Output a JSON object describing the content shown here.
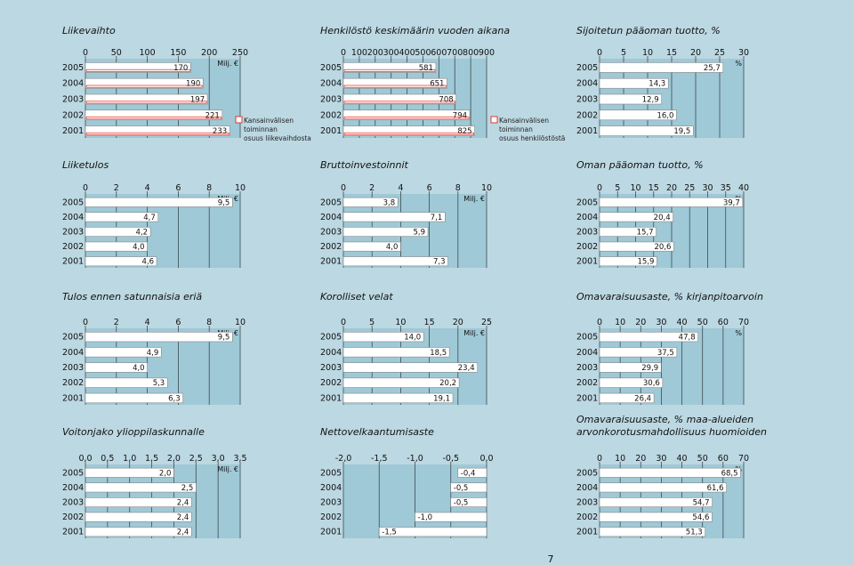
{
  "page": {
    "number": "7"
  },
  "colors": {
    "background": "#bcd8e2",
    "plot": "#9fc9d6",
    "bar": "#ffffff",
    "bar_border": "#888888",
    "grid": "#3d4b52",
    "legend_box": "#e0281e"
  },
  "chart_data": [
    {
      "type": "bar",
      "orientation": "horizontal",
      "title": "Liikevaihto",
      "categories": [
        "2005",
        "2004",
        "2003",
        "2002",
        "2001"
      ],
      "values": [
        170,
        190,
        197,
        221,
        233
      ],
      "value_labels": [
        "170",
        "190",
        "197",
        "221",
        "233"
      ],
      "ticks": [
        0,
        50,
        100,
        150,
        200,
        250
      ],
      "tick_labels": [
        "0",
        "50",
        "100",
        "150",
        "200",
        "250"
      ],
      "xlim": [
        0,
        250
      ],
      "unit": "Milj. €",
      "highlight": true,
      "legend": [
        "Kansainvälisen",
        "toiminnan",
        "osuus liikevaihdosta"
      ]
    },
    {
      "type": "bar",
      "orientation": "horizontal",
      "title": "Henkilöstö keskimäärin vuoden aikana",
      "categories": [
        "2005",
        "2004",
        "2003",
        "2002",
        "2001"
      ],
      "values": [
        581,
        651,
        708,
        794,
        825
      ],
      "value_labels": [
        "581",
        "651",
        "708",
        "794",
        "825"
      ],
      "ticks": [
        0,
        100,
        200,
        300,
        400,
        500,
        600,
        700,
        800,
        900
      ],
      "tick_labels": [
        "0",
        "100",
        "200",
        "300",
        "400",
        "500",
        "600",
        "700",
        "800",
        "900"
      ],
      "xlim": [
        0,
        900
      ],
      "highlight": true,
      "legend": [
        "Kansainvälisen",
        "toiminnan",
        "osuus henkilöstöstä"
      ]
    },
    {
      "type": "bar",
      "orientation": "horizontal",
      "title": "Sijoitetun pääoman tuotto, %",
      "categories": [
        "2005",
        "2004",
        "2003",
        "2002",
        "2001"
      ],
      "values": [
        25.7,
        14.3,
        12.9,
        16.0,
        19.5
      ],
      "value_labels": [
        "25,7",
        "14,3",
        "12,9",
        "16,0",
        "19,5"
      ],
      "ticks": [
        0,
        5,
        10,
        15,
        20,
        25,
        30
      ],
      "tick_labels": [
        "0",
        "5",
        "10",
        "15",
        "20",
        "25",
        "30"
      ],
      "xlim": [
        0,
        30
      ],
      "unit": "%"
    },
    {
      "type": "bar",
      "orientation": "horizontal",
      "title": "Liiketulos",
      "categories": [
        "2005",
        "2004",
        "2003",
        "2002",
        "2001"
      ],
      "values": [
        9.5,
        4.7,
        4.2,
        4.0,
        4.6
      ],
      "value_labels": [
        "9,5",
        "4,7",
        "4,2",
        "4,0",
        "4,6"
      ],
      "ticks": [
        0,
        2,
        4,
        6,
        8,
        10
      ],
      "tick_labels": [
        "0",
        "2",
        "4",
        "6",
        "8",
        "10"
      ],
      "xlim": [
        0,
        10
      ],
      "unit": "Milj. €"
    },
    {
      "type": "bar",
      "orientation": "horizontal",
      "title": "Bruttoinvestoinnit",
      "categories": [
        "2005",
        "2004",
        "2003",
        "2002",
        "2001"
      ],
      "values": [
        3.8,
        7.1,
        5.9,
        4.0,
        7.3
      ],
      "value_labels": [
        "3,8",
        "7,1",
        "5,9",
        "4,0",
        "7,3"
      ],
      "ticks": [
        0,
        2,
        4,
        6,
        8,
        10
      ],
      "tick_labels": [
        "0",
        "2",
        "4",
        "6",
        "8",
        "10"
      ],
      "xlim": [
        0,
        10
      ],
      "unit": "Milj. €"
    },
    {
      "type": "bar",
      "orientation": "horizontal",
      "title": "Oman pääoman tuotto, %",
      "categories": [
        "2005",
        "2004",
        "2003",
        "2002",
        "2001"
      ],
      "values": [
        39.7,
        20.4,
        15.7,
        20.6,
        15.9
      ],
      "value_labels": [
        "39,7",
        "20,4",
        "15,7",
        "20,6",
        "15,9"
      ],
      "ticks": [
        0,
        5,
        10,
        15,
        20,
        25,
        30,
        35,
        40
      ],
      "tick_labels": [
        "0",
        "5",
        "10",
        "15",
        "20",
        "25",
        "30",
        "35",
        "40"
      ],
      "xlim": [
        0,
        40
      ],
      "unit": "%"
    },
    {
      "type": "bar",
      "orientation": "horizontal",
      "title": "Tulos ennen satunnaisia eriä",
      "categories": [
        "2005",
        "2004",
        "2003",
        "2002",
        "2001"
      ],
      "values": [
        9.5,
        4.9,
        4.0,
        5.3,
        6.3
      ],
      "value_labels": [
        "9,5",
        "4,9",
        "4,0",
        "5,3",
        "6,3"
      ],
      "ticks": [
        0,
        2,
        4,
        6,
        8,
        10
      ],
      "tick_labels": [
        "0",
        "2",
        "4",
        "6",
        "8",
        "10"
      ],
      "xlim": [
        0,
        10
      ],
      "unit": "Milj. €"
    },
    {
      "type": "bar",
      "orientation": "horizontal",
      "title": "Korolliset velat",
      "categories": [
        "2005",
        "2004",
        "2003",
        "2002",
        "2001"
      ],
      "values": [
        14.0,
        18.5,
        23.4,
        20.2,
        19.1
      ],
      "value_labels": [
        "14,0",
        "18,5",
        "23,4",
        "20,2",
        "19,1"
      ],
      "ticks": [
        0,
        5,
        10,
        15,
        20,
        25
      ],
      "tick_labels": [
        "0",
        "5",
        "10",
        "15",
        "20",
        "25"
      ],
      "xlim": [
        0,
        25
      ],
      "unit": "Milj. €"
    },
    {
      "type": "bar",
      "orientation": "horizontal",
      "title": "Omavaraisuusaste, % kirjanpitoarvoin",
      "categories": [
        "2005",
        "2004",
        "2003",
        "2002",
        "2001"
      ],
      "values": [
        47.8,
        37.5,
        29.9,
        30.6,
        26.4
      ],
      "value_labels": [
        "47,8",
        "37,5",
        "29,9",
        "30,6",
        "26,4"
      ],
      "ticks": [
        0,
        10,
        20,
        30,
        40,
        50,
        60,
        70
      ],
      "tick_labels": [
        "0",
        "10",
        "20",
        "30",
        "40",
        "50",
        "60",
        "70"
      ],
      "xlim": [
        0,
        70
      ],
      "unit": "%"
    },
    {
      "type": "bar",
      "orientation": "horizontal",
      "title": "Voitonjako ylioppilaskunnalle",
      "categories": [
        "2005",
        "2004",
        "2003",
        "2002",
        "2001"
      ],
      "values": [
        2.0,
        2.5,
        2.4,
        2.4,
        2.4
      ],
      "value_labels": [
        "2,0",
        "2,5",
        "2,4",
        "2,4",
        "2,4"
      ],
      "ticks": [
        0,
        0.5,
        1.0,
        1.5,
        2.0,
        2.5,
        3.0,
        3.5
      ],
      "tick_labels": [
        "0,0",
        "0,5",
        "1,0",
        "1,5",
        "2,0",
        "2,5",
        "3,0",
        "3,5"
      ],
      "xlim": [
        0,
        3.5
      ],
      "unit": "Milj. €"
    },
    {
      "type": "bar",
      "orientation": "horizontal",
      "title": "Nettovelkaantumisaste",
      "categories": [
        "2005",
        "2004",
        "2003",
        "2002",
        "2001"
      ],
      "values": [
        -0.4,
        -0.5,
        -0.5,
        -1.0,
        -1.5
      ],
      "value_labels": [
        "-0,4",
        "-0,5",
        "-0,5",
        "-1,0",
        "-1,5"
      ],
      "ticks": [
        -2.0,
        -1.5,
        -1.0,
        -0.5,
        0.0
      ],
      "tick_labels": [
        "-2,0",
        "-1,5",
        "-1,0",
        "-0,5",
        "0,0"
      ],
      "xlim": [
        -2.0,
        0.0
      ]
    },
    {
      "type": "bar",
      "orientation": "horizontal",
      "title": [
        "Omavaraisuusaste, % maa-alueiden",
        "arvonkorotusmahdollisuus huomioiden"
      ],
      "categories": [
        "2005",
        "2004",
        "2003",
        "2002",
        "2001"
      ],
      "values": [
        68.5,
        61.6,
        54.7,
        54.6,
        51.3
      ],
      "value_labels": [
        "68,5",
        "61,6",
        "54,7",
        "54,6",
        "51,3"
      ],
      "ticks": [
        0,
        10,
        20,
        30,
        40,
        50,
        60,
        70
      ],
      "tick_labels": [
        "0",
        "10",
        "20",
        "30",
        "40",
        "50",
        "60",
        "70"
      ],
      "xlim": [
        0,
        70
      ],
      "unit": "%"
    }
  ]
}
